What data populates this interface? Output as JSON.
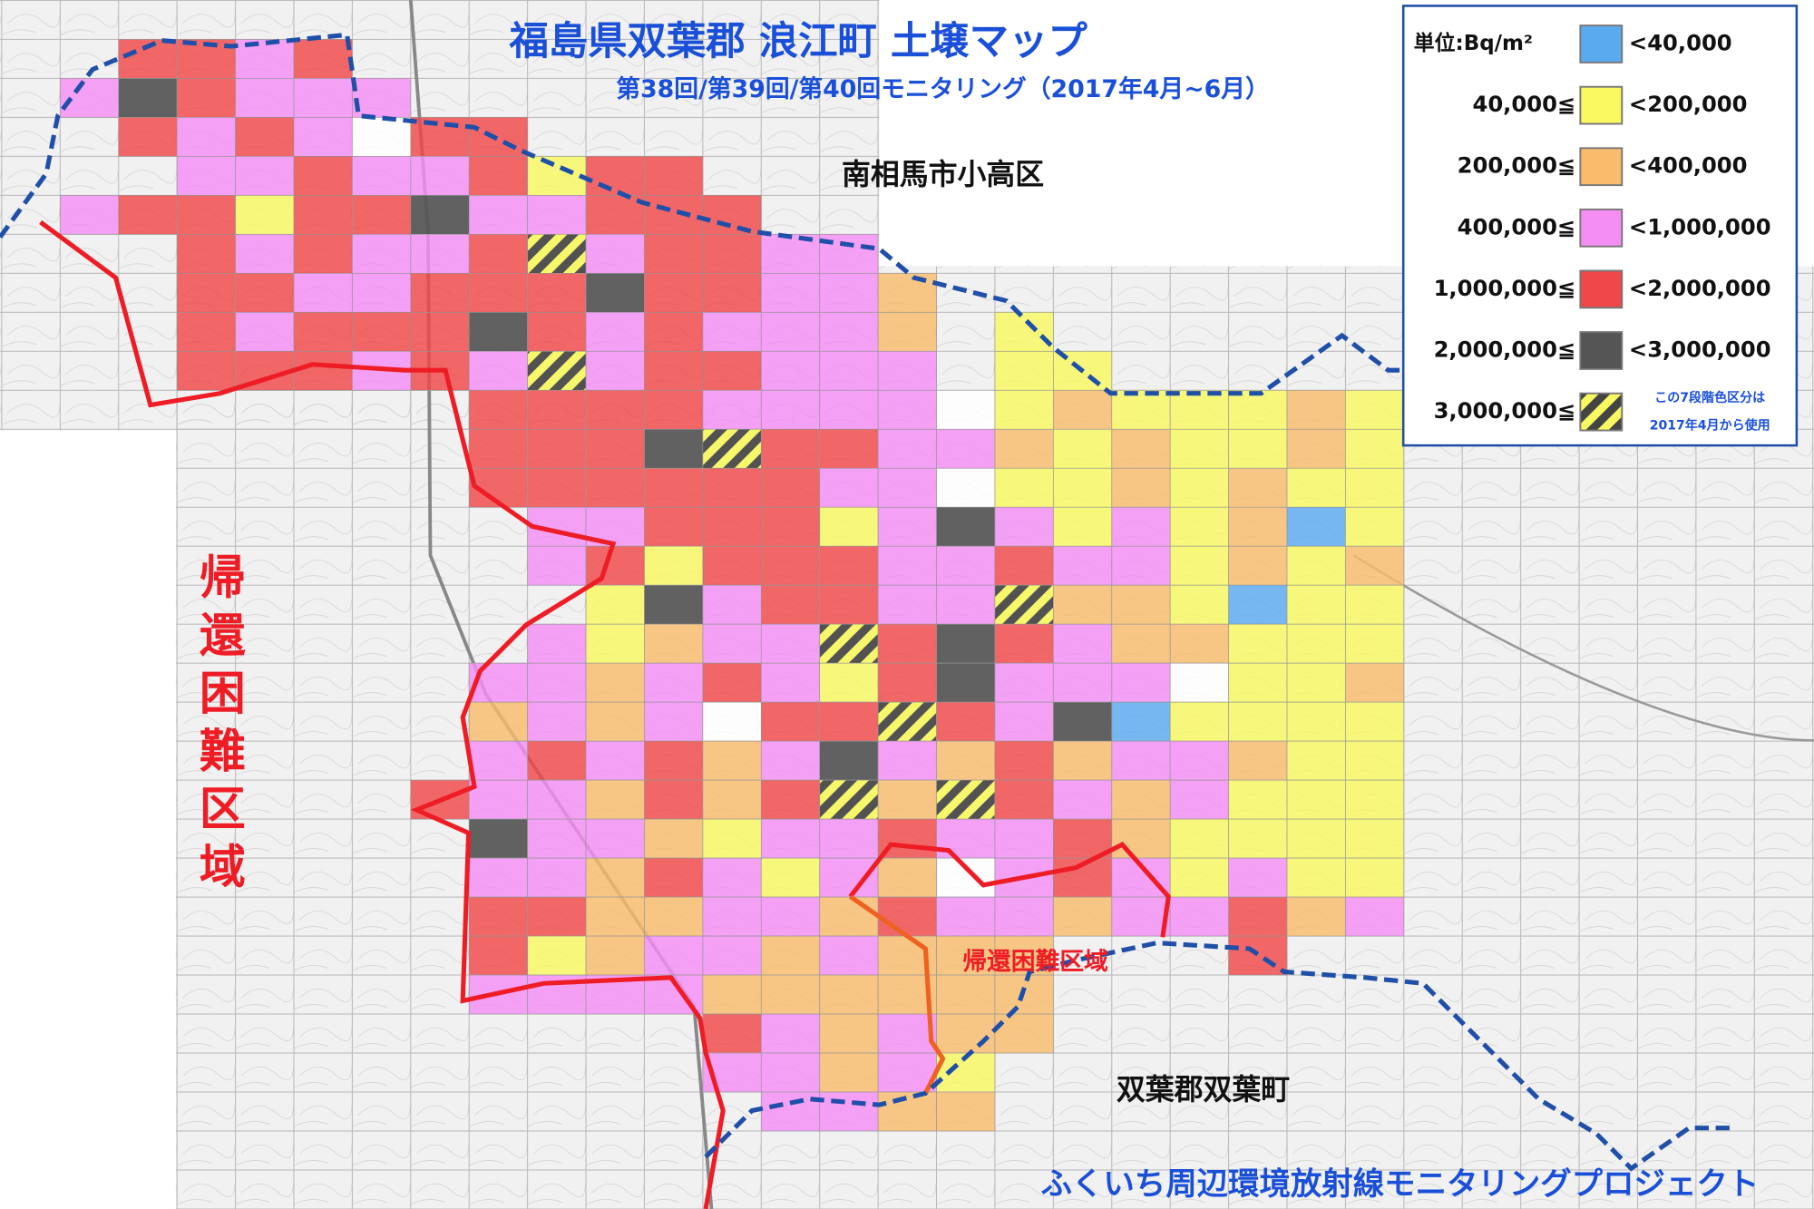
{
  "title": "福島県双葉郡 浪江町 土壌マップ",
  "subtitle": "第38回/第39回/第40回モニタリング（2017年4月~6月）",
  "places": {
    "north": "南相馬市小高区",
    "zone_vertical": "帰還困難区域",
    "zone": "帰還困難区域",
    "south": "双葉郡双葉町"
  },
  "footer": "ふくいち周辺環境放射線モニタリングプロジェクト",
  "legend": {
    "unit": "単位:Bq/m²",
    "items": [
      {
        "upper": "<40,000",
        "color": "#5aaaf0"
      },
      {
        "lower": "40,000≦",
        "upper": "<200,000",
        "color": "#f8f860"
      },
      {
        "lower": "200,000≦",
        "upper": "<400,000",
        "color": "#f8bc6c"
      },
      {
        "lower": "400,000≦",
        "upper": "<1,000,000",
        "color": "#f48ef5"
      },
      {
        "lower": "1,000,000≦",
        "upper": "<2,000,000",
        "color": "#f04848"
      },
      {
        "lower": "2,000,000≦",
        "upper": "<3,000,000",
        "color": "#555555"
      },
      {
        "lower": "3,000,000≦",
        "note": [
          "この7段階色区分は",
          "2017年4月から使用"
        ]
      }
    ]
  }
}
